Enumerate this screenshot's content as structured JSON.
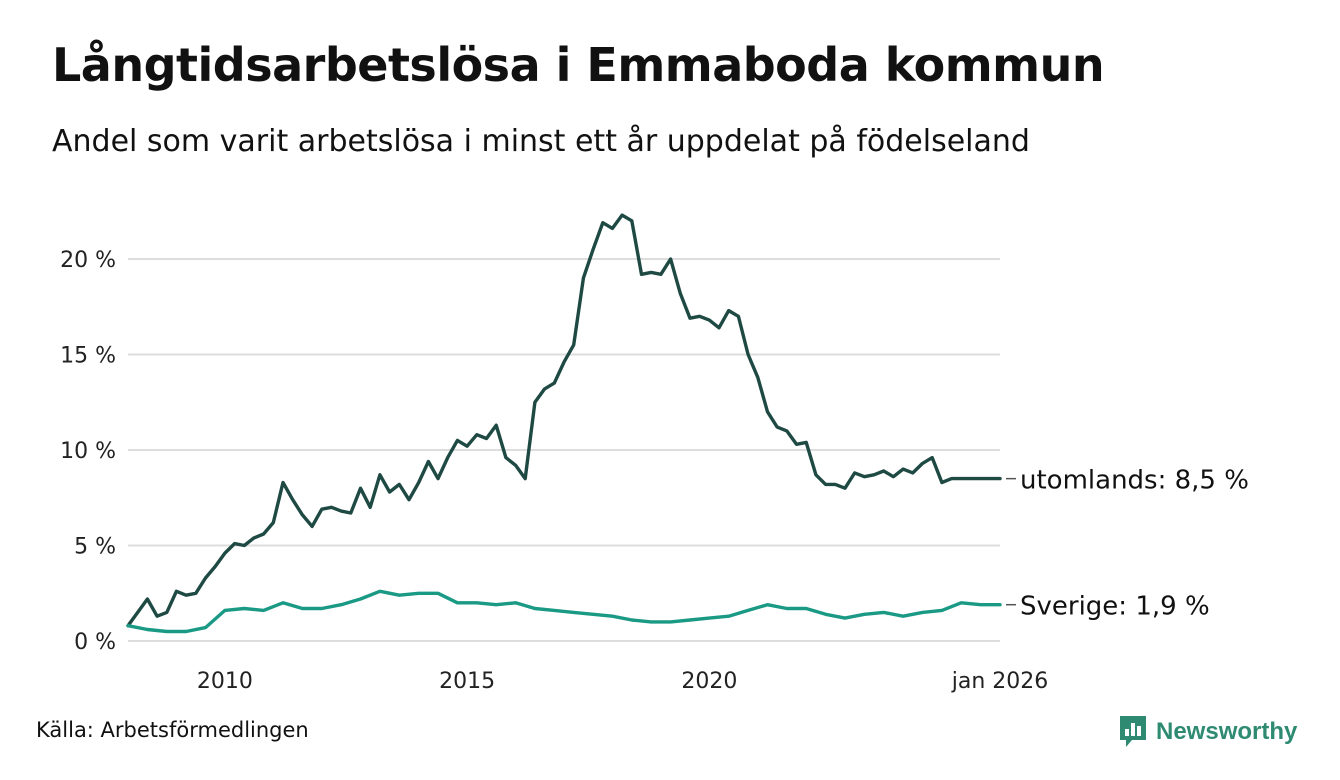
{
  "title": "Långtidsarbetslösa i Emmaboda kommun",
  "subtitle": "Andel som varit arbetslösa i minst ett år uppdelat på födelseland",
  "source": "Källa: Arbetsförmedlingen",
  "logo_text": "Newsworthy",
  "colors": {
    "utomlands": "#1f4a44",
    "sverige": "#1a9985",
    "grid": "#dddddd",
    "logo": "#2e8b72"
  },
  "chart_data": {
    "type": "line",
    "title": "Långtidsarbetslösa i Emmaboda kommun",
    "subtitle": "Andel som varit arbetslösa i minst ett år uppdelat på födelseland",
    "xlabel": "",
    "ylabel": "",
    "x_range": [
      2008.0,
      2026.0
    ],
    "ylim": [
      0,
      23
    ],
    "y_ticks": [
      0,
      5,
      10,
      15,
      20
    ],
    "y_tick_labels": [
      "0 %",
      "5 %",
      "10 %",
      "15 %",
      "20 %"
    ],
    "x_ticks": [
      2010,
      2015,
      2020,
      2026.0
    ],
    "x_tick_labels": [
      "2010",
      "2015",
      "2020",
      "jan 2026"
    ],
    "grid": true,
    "series": [
      {
        "name": "utomlands",
        "end_label": "utomlands: 8,5 %",
        "x": [
          2008.0,
          2008.2,
          2008.4,
          2008.6,
          2008.8,
          2009.0,
          2009.2,
          2009.4,
          2009.6,
          2009.8,
          2010.0,
          2010.2,
          2010.4,
          2010.6,
          2010.8,
          2011.0,
          2011.2,
          2011.4,
          2011.6,
          2011.8,
          2012.0,
          2012.2,
          2012.4,
          2012.6,
          2012.8,
          2013.0,
          2013.2,
          2013.4,
          2013.6,
          2013.8,
          2014.0,
          2014.2,
          2014.4,
          2014.6,
          2014.8,
          2015.0,
          2015.2,
          2015.4,
          2015.6,
          2015.8,
          2016.0,
          2016.2,
          2016.4,
          2016.6,
          2016.8,
          2017.0,
          2017.2,
          2017.4,
          2017.6,
          2017.8,
          2018.0,
          2018.2,
          2018.4,
          2018.6,
          2018.8,
          2019.0,
          2019.2,
          2019.4,
          2019.6,
          2019.8,
          2020.0,
          2020.2,
          2020.4,
          2020.6,
          2020.8,
          2021.0,
          2021.2,
          2021.4,
          2021.6,
          2021.8,
          2022.0,
          2022.2,
          2022.4,
          2022.6,
          2022.8,
          2023.0,
          2023.2,
          2023.4,
          2023.6,
          2023.8,
          2024.0,
          2024.2,
          2024.4,
          2024.6,
          2024.8,
          2025.0,
          2025.2,
          2025.4,
          2025.6,
          2025.8,
          2026.0
        ],
        "values": [
          0.8,
          1.5,
          2.2,
          1.3,
          1.5,
          2.6,
          2.4,
          2.5,
          3.3,
          3.9,
          4.6,
          5.1,
          5.0,
          5.4,
          5.6,
          6.2,
          8.3,
          7.4,
          6.6,
          6.0,
          6.9,
          7.0,
          6.8,
          6.7,
          8.0,
          7.0,
          8.7,
          7.8,
          8.2,
          7.4,
          8.3,
          9.4,
          8.5,
          9.6,
          10.5,
          10.2,
          10.8,
          10.6,
          11.3,
          9.6,
          9.2,
          8.5,
          12.5,
          13.2,
          13.5,
          14.6,
          15.5,
          19.0,
          20.5,
          21.9,
          21.6,
          22.3,
          22.0,
          19.2,
          19.3,
          19.2,
          20.0,
          18.2,
          16.9,
          17.0,
          16.8,
          16.4,
          17.3,
          17.0,
          15.0,
          13.8,
          12.0,
          11.2,
          11.0,
          10.3,
          10.4,
          8.7,
          8.2,
          8.2,
          8.0,
          8.8,
          8.6,
          8.7,
          8.9,
          8.6,
          9.0,
          8.8,
          9.3,
          9.6,
          8.3,
          8.5,
          8.5,
          8.5,
          8.5,
          8.5,
          8.5
        ]
      },
      {
        "name": "Sverige",
        "end_label": "Sverige: 1,9 %",
        "x": [
          2008.0,
          2008.4,
          2008.8,
          2009.2,
          2009.6,
          2010.0,
          2010.4,
          2010.8,
          2011.2,
          2011.6,
          2012.0,
          2012.4,
          2012.8,
          2013.2,
          2013.6,
          2014.0,
          2014.4,
          2014.8,
          2015.2,
          2015.6,
          2016.0,
          2016.4,
          2016.8,
          2017.2,
          2017.6,
          2018.0,
          2018.4,
          2018.8,
          2019.2,
          2019.6,
          2020.0,
          2020.4,
          2020.8,
          2021.2,
          2021.6,
          2022.0,
          2022.4,
          2022.8,
          2023.2,
          2023.6,
          2024.0,
          2024.4,
          2024.8,
          2025.2,
          2025.6,
          2026.0
        ],
        "values": [
          0.8,
          0.6,
          0.5,
          0.5,
          0.7,
          1.6,
          1.7,
          1.6,
          2.0,
          1.7,
          1.7,
          1.9,
          2.2,
          2.6,
          2.4,
          2.5,
          2.5,
          2.0,
          2.0,
          1.9,
          2.0,
          1.7,
          1.6,
          1.5,
          1.4,
          1.3,
          1.1,
          1.0,
          1.0,
          1.1,
          1.2,
          1.3,
          1.6,
          1.9,
          1.7,
          1.7,
          1.4,
          1.2,
          1.4,
          1.5,
          1.3,
          1.5,
          1.6,
          2.0,
          1.9,
          1.9
        ]
      }
    ]
  }
}
